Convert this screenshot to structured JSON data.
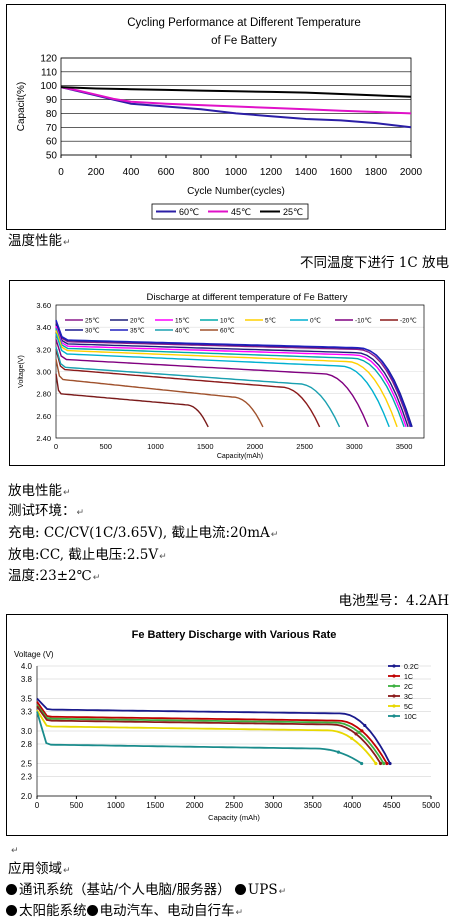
{
  "doc": {
    "heading_temp": "温度性能",
    "caption_temp": "不同温度下进行 1C 放电",
    "heading_discharge": "放电性能",
    "test_env": "测试环境：",
    "charge_line": "充电: CC/CV(1C/3.65V), 截止电流:20mA",
    "discharge_line": "放电:CC, 截止电压:2.5V",
    "temp_line": "温度:23±2℃",
    "model_line": "电池型号：4.2AH",
    "heading_app": "应用领域",
    "app_line1_items": [
      "通讯系统（基站/个人电脑/服务器）",
      "UPS"
    ],
    "app_line2_items": [
      "太阳能系统",
      "电动汽车、电动自行车"
    ],
    "paragraph_mark": "↵"
  },
  "chart_data": [
    {
      "type": "line",
      "title": "Cycling Performance at Different Temperature of Fe Battery",
      "title_lines": [
        "Cycling Performance at Different Temperature",
        "of Fe Battery"
      ],
      "xlabel": "Cycle Number(cycles)",
      "ylabel": "Capacit(%)",
      "xlim": [
        0,
        2000
      ],
      "ylim": [
        50,
        120
      ],
      "xticks": [
        0,
        200,
        400,
        600,
        800,
        1000,
        1200,
        1400,
        1600,
        1800,
        2000
      ],
      "yticks": [
        50,
        60,
        70,
        80,
        90,
        100,
        110,
        120
      ],
      "legend_position": "bottom",
      "series": [
        {
          "name": "60℃",
          "color": "#2b1fa6",
          "x": [
            0,
            100,
            200,
            300,
            400,
            600,
            800,
            1000,
            1200,
            1400,
            1600,
            1800,
            2000
          ],
          "y": [
            99,
            96,
            93,
            90,
            87,
            85,
            83,
            80,
            78,
            76,
            75,
            73,
            70
          ]
        },
        {
          "name": "45℃",
          "color": "#e011c8",
          "x": [
            0,
            100,
            200,
            300,
            400,
            600,
            800,
            1000,
            1200,
            1400,
            1600,
            1800,
            2000
          ],
          "y": [
            99,
            96.5,
            93.5,
            90.5,
            88.5,
            87,
            86,
            85,
            84,
            83,
            82,
            81,
            80
          ]
        },
        {
          "name": "25℃",
          "color": "#000000",
          "x": [
            0,
            200,
            400,
            600,
            800,
            1000,
            1200,
            1400,
            1600,
            1800,
            2000
          ],
          "y": [
            99,
            98,
            97.5,
            97,
            96.5,
            96,
            95.5,
            95,
            94,
            93,
            92
          ]
        }
      ]
    },
    {
      "type": "line",
      "title": "Discharge at different temperature of Fe Battery",
      "xlabel": "Capacity(mAh)",
      "ylabel": "Voltage(V)",
      "xlim": [
        0,
        3700
      ],
      "ylim": [
        2.4,
        3.6
      ],
      "xticks": [
        0,
        500,
        1000,
        1500,
        2000,
        2500,
        3000,
        3500
      ],
      "yticks": [
        2.4,
        2.6,
        2.8,
        3.0,
        3.2,
        3.4,
        3.6
      ],
      "ytick_labels": [
        "2.40",
        "2.60",
        "2.80",
        "3.00",
        "3.20",
        "3.40",
        "3.60"
      ],
      "legend_position": "top",
      "series": [
        {
          "name": "25℃",
          "color": "#8b1a8b",
          "end": 3560,
          "plateau": 3.27,
          "slope": 0.07
        },
        {
          "name": "20℃",
          "color": "#1f1f7a",
          "end": 3540,
          "plateau": 3.25,
          "slope": 0.08
        },
        {
          "name": "15℃",
          "color": "#ff00ff",
          "end": 3520,
          "plateau": 3.23,
          "slope": 0.08
        },
        {
          "name": "10℃",
          "color": "#00aaaa",
          "end": 3500,
          "plateau": 3.21,
          "slope": 0.09
        },
        {
          "name": "5℃",
          "color": "#ffd000",
          "end": 3430,
          "plateau": 3.19,
          "slope": 0.1
        },
        {
          "name": "0℃",
          "color": "#00b0d0",
          "end": 3350,
          "plateau": 3.16,
          "slope": 0.11
        },
        {
          "name": "-10℃",
          "color": "#800080",
          "end": 3140,
          "plateau": 3.11,
          "slope": 0.13
        },
        {
          "name": "-20℃",
          "color": "#8b1a1a",
          "end": 2650,
          "plateau": 3.02,
          "slope": 0.16
        },
        {
          "name": "30℃",
          "color": "#1a1a90",
          "end": 3580,
          "plateau": 3.28,
          "slope": 0.07
        },
        {
          "name": "35℃",
          "color": "#2020c0",
          "end": 3570,
          "plateau": 3.285,
          "slope": 0.07
        },
        {
          "name": "40℃",
          "color": "#1aa0b0",
          "end": 2850,
          "plateau": 3.04,
          "slope": 0.15
        },
        {
          "name": "60℃",
          "color": "#a0522d",
          "end": 2080,
          "plateau": 2.93,
          "slope": 0.16
        },
        {
          "name": "",
          "color": "#7a1a1a",
          "end": 1530,
          "plateau": 2.8,
          "slope": 0.1
        }
      ]
    },
    {
      "type": "line",
      "title": "Fe Battery Discharge with Various Rate",
      "xlabel": "Capacity (mAh)",
      "ylabel": "Voltage (V)",
      "xlim": [
        0,
        5000
      ],
      "ylim": [
        2.0,
        4.0
      ],
      "xticks": [
        0,
        500,
        1000,
        1500,
        2000,
        2500,
        3000,
        3500,
        4000,
        4500,
        5000
      ],
      "yticks": [
        2.0,
        2.3,
        2.5,
        2.8,
        3.0,
        3.3,
        3.5,
        3.8,
        4.0
      ],
      "ytick_labels": [
        "2.0",
        "2.3",
        "2.5",
        "2.8",
        "3.0",
        "3.3",
        "3.5",
        "3.8",
        "4.0"
      ],
      "legend_position": "right",
      "series": [
        {
          "name": "0.2C",
          "color": "#1a1a8c",
          "end": 4480,
          "plateau": 3.33,
          "start": 3.5
        },
        {
          "name": "1C",
          "color": "#c00000",
          "end": 4440,
          "plateau": 3.22,
          "start": 3.45
        },
        {
          "name": "2C",
          "color": "#3cb040",
          "end": 4400,
          "plateau": 3.19,
          "start": 3.4
        },
        {
          "name": "3C",
          "color": "#8b1a1a",
          "end": 4360,
          "plateau": 3.16,
          "start": 3.38
        },
        {
          "name": "5C",
          "color": "#e8d800",
          "end": 4300,
          "plateau": 3.07,
          "start": 3.32
        },
        {
          "name": "10C",
          "color": "#1a8c8c",
          "end": 4120,
          "plateau": 2.79,
          "start": 3.3
        }
      ]
    }
  ]
}
